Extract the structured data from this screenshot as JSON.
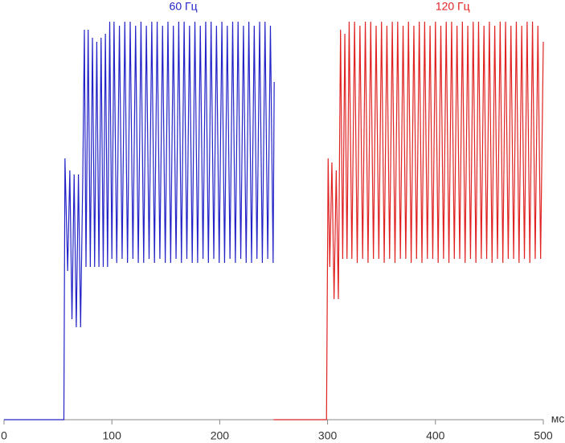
{
  "chart_data": {
    "type": "line",
    "xlabel": "мс",
    "xlim": [
      0,
      500
    ],
    "xticks": [
      0,
      100,
      200,
      300,
      400,
      500
    ],
    "ylim": [
      0,
      100
    ],
    "series": [
      {
        "name": "60 Гц",
        "color": "#2323c8",
        "x": [
          0,
          55.5,
          56.5,
          59,
          61,
          63,
          65,
          67,
          69,
          71,
          73,
          74.5,
          76,
          78,
          80,
          82,
          84,
          86,
          88,
          90,
          92,
          94,
          96,
          98,
          100,
          102,
          104.5,
          107,
          109.5,
          112,
          114.5,
          117,
          119.5,
          122,
          124.5,
          127,
          129.5,
          132,
          134.5,
          137,
          139.5,
          142,
          144.5,
          147,
          149.5,
          152,
          154.5,
          157,
          159.5,
          162,
          164.5,
          167,
          169.5,
          172,
          174.5,
          177,
          179.5,
          182,
          184.5,
          187,
          189.5,
          192,
          194.5,
          197,
          199.5,
          202,
          204.5,
          207,
          209.5,
          212,
          214.5,
          217,
          219.5,
          222,
          224.5,
          227,
          229.5,
          232,
          234.5,
          237,
          239.5,
          242,
          244.5,
          247,
          249.5,
          250.5
        ],
        "values": [
          0,
          0,
          65,
          37,
          62,
          25,
          61,
          23,
          61,
          23,
          60,
          97,
          38,
          97,
          38,
          95,
          38,
          94,
          38,
          95,
          38,
          96,
          38,
          99,
          40,
          99,
          39,
          98,
          40,
          99,
          39,
          99,
          40,
          98,
          39,
          99,
          39,
          98,
          40,
          99,
          39,
          99,
          40,
          98,
          39,
          99,
          39,
          98,
          40,
          99,
          39,
          99,
          40,
          98,
          39,
          99,
          39,
          98,
          40,
          99,
          39,
          99,
          40,
          98,
          39,
          99,
          39,
          98,
          40,
          99,
          39,
          99,
          40,
          98,
          39,
          99,
          39,
          98,
          40,
          99,
          39,
          99,
          40,
          98,
          39,
          84
        ]
      },
      {
        "name": "120 Гц",
        "color": "#e02222",
        "x": [
          250,
          299,
          300.5,
          302,
          304,
          306,
          308,
          310,
          312,
          314,
          316,
          318,
          320,
          322.5,
          325,
          327.5,
          330,
          332.5,
          335,
          337.5,
          340,
          342.5,
          345,
          347.5,
          350,
          352.5,
          355,
          357.5,
          360,
          362.5,
          365,
          367.5,
          370,
          372.5,
          375,
          377.5,
          380,
          382.5,
          385,
          387.5,
          390,
          392.5,
          395,
          397.5,
          400,
          402.5,
          405,
          407.5,
          410,
          412.5,
          415,
          417.5,
          420,
          422.5,
          425,
          427.5,
          430,
          432.5,
          435,
          437.5,
          440,
          442.5,
          445,
          447.5,
          450,
          452.5,
          455,
          457.5,
          460,
          462.5,
          465,
          467.5,
          470,
          472.5,
          475,
          477.5,
          480,
          482.5,
          485,
          487.5,
          490,
          492.5,
          495,
          497.5,
          500
        ],
        "values": [
          0,
          0,
          65,
          38,
          64,
          30,
          62,
          30,
          97,
          40,
          96,
          40,
          99,
          40,
          99,
          39,
          98,
          40,
          99,
          39,
          99,
          40,
          98,
          40,
          99,
          39,
          98,
          40,
          99,
          39,
          99,
          40,
          98,
          40,
          99,
          39,
          98,
          40,
          99,
          39,
          99,
          40,
          98,
          40,
          99,
          39,
          98,
          40,
          99,
          39,
          99,
          40,
          98,
          40,
          99,
          39,
          98,
          40,
          99,
          39,
          99,
          40,
          98,
          40,
          99,
          39,
          98,
          40,
          99,
          39,
          99,
          40,
          98,
          40,
          99,
          39,
          98,
          40,
          99,
          39,
          99,
          40,
          98,
          40,
          94
        ]
      }
    ]
  }
}
